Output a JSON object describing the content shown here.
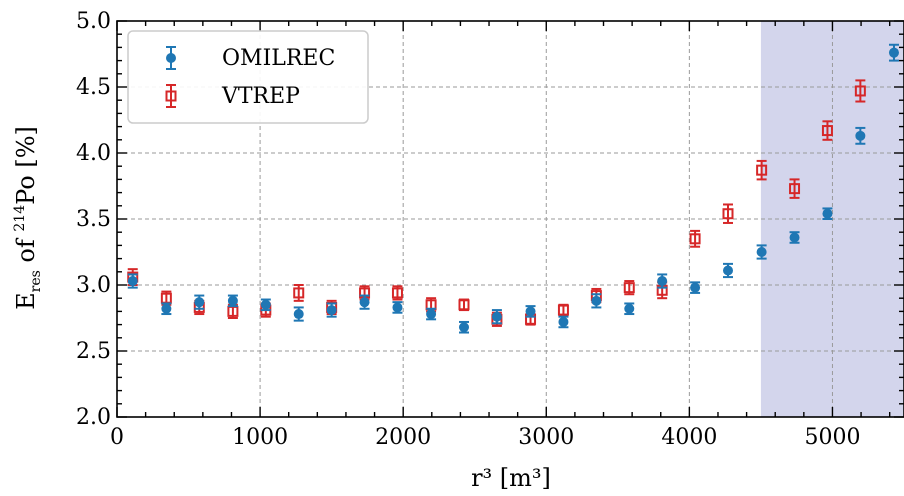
{
  "chart_data": {
    "type": "scatter",
    "xlabel": "r³ [m³]",
    "ylabel_main": "E",
    "ylabel_sub": "res",
    "ylabel_mid": " of ",
    "ylabel_sup": "214",
    "ylabel_end": "Po [%]",
    "xlim": [
      0,
      5500
    ],
    "ylim": [
      2.0,
      5.0
    ],
    "xticks": [
      0,
      1000,
      2000,
      3000,
      4000,
      5000
    ],
    "xtick_labels": [
      "0",
      "1000",
      "2000",
      "3000",
      "4000",
      "5000"
    ],
    "yticks": [
      2.0,
      2.5,
      3.0,
      3.5,
      4.0,
      4.5,
      5.0
    ],
    "ytick_labels": [
      "2.0",
      "2.5",
      "3.0",
      "3.5",
      "4.0",
      "4.5",
      "5.0"
    ],
    "grid": true,
    "legend_position": "top-left",
    "shaded_region": {
      "x": [
        4500,
        5500
      ],
      "color": "#d3d5ec"
    },
    "series": [
      {
        "name": "OMILREC",
        "color": "#1f77b4",
        "marker": "circle-filled",
        "x": [
          110,
          345,
          575,
          810,
          1040,
          1270,
          1500,
          1730,
          1960,
          2195,
          2425,
          2655,
          2890,
          3120,
          3350,
          3580,
          3810,
          4040,
          4270,
          4505,
          4735,
          4965,
          5195,
          5430
        ],
        "y": [
          3.03,
          2.82,
          2.87,
          2.88,
          2.85,
          2.78,
          2.81,
          2.87,
          2.83,
          2.78,
          2.68,
          2.76,
          2.8,
          2.72,
          2.88,
          2.82,
          3.03,
          2.98,
          3.11,
          3.25,
          3.36,
          3.54,
          4.13,
          4.76
        ],
        "err": [
          0.05,
          0.04,
          0.05,
          0.04,
          0.04,
          0.05,
          0.05,
          0.05,
          0.04,
          0.04,
          0.04,
          0.05,
          0.04,
          0.04,
          0.05,
          0.04,
          0.05,
          0.04,
          0.05,
          0.05,
          0.04,
          0.04,
          0.06,
          0.06
        ]
      },
      {
        "name": "VTREP",
        "color": "#d62728",
        "marker": "square-open",
        "x": [
          110,
          345,
          575,
          810,
          1040,
          1270,
          1500,
          1730,
          1960,
          2195,
          2425,
          2655,
          2890,
          3120,
          3350,
          3580,
          3810,
          4040,
          4270,
          4505,
          4735,
          4965,
          5195
        ],
        "y": [
          3.06,
          2.9,
          2.83,
          2.8,
          2.81,
          2.94,
          2.83,
          2.94,
          2.94,
          2.85,
          2.85,
          2.74,
          2.74,
          2.81,
          2.92,
          2.98,
          2.96,
          3.35,
          3.54,
          3.87,
          3.73,
          4.17,
          4.47
        ],
        "err": [
          0.06,
          0.05,
          0.05,
          0.05,
          0.05,
          0.06,
          0.05,
          0.05,
          0.05,
          0.05,
          0.04,
          0.05,
          0.04,
          0.04,
          0.05,
          0.05,
          0.06,
          0.06,
          0.07,
          0.07,
          0.07,
          0.07,
          0.08
        ]
      }
    ]
  }
}
